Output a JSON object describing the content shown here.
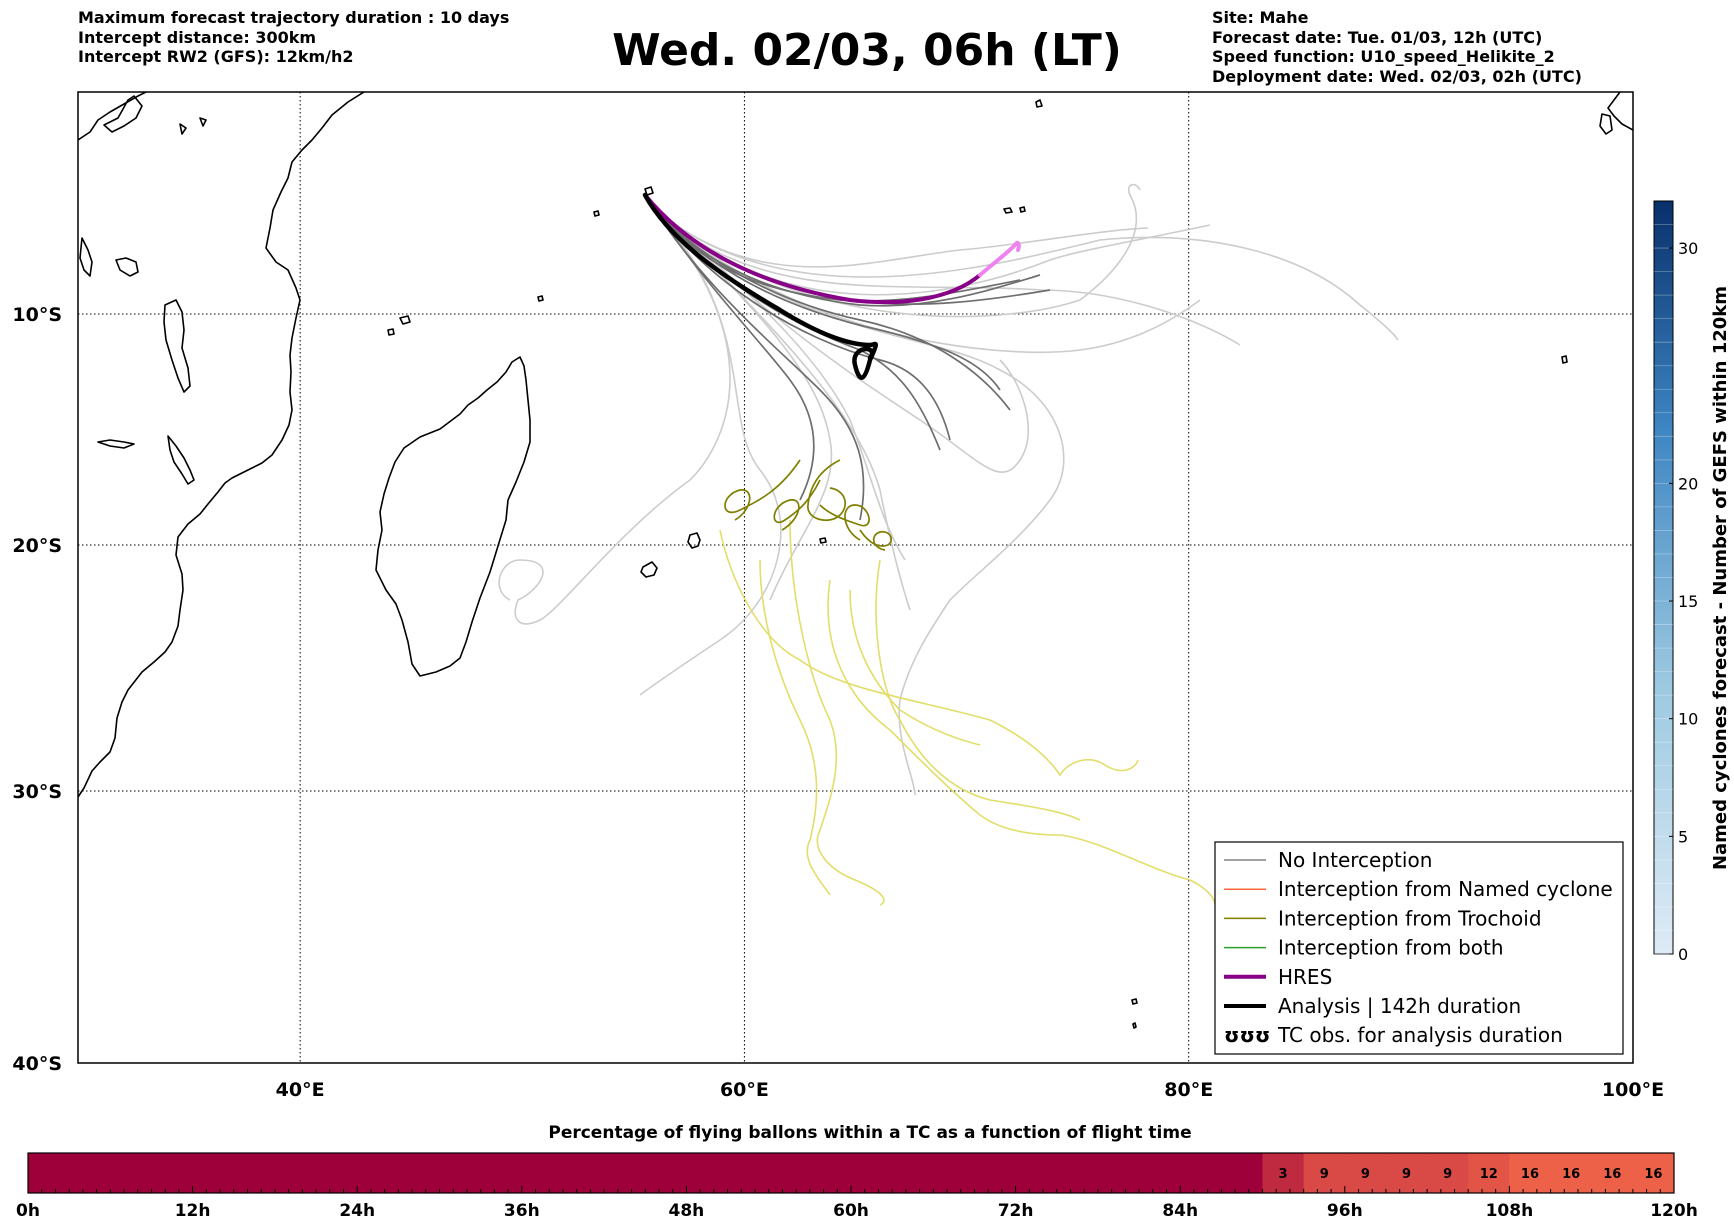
{
  "header": {
    "title": "Wed. 02/03, 06h (LT)",
    "left_lines": [
      "Maximum forecast trajectory duration : 10 days",
      "Intercept distance: 300km",
      "Intercept RW2 (GFS):  12km/h2"
    ],
    "right_lines": [
      "Site: Mahe",
      "Forecast date: Tue. 01/03, 12h (UTC)",
      "Speed function: U10_speed_Helikite_2",
      "Deployment date: Wed. 02/03, 02h (UTC)"
    ]
  },
  "map": {
    "lon_range": [
      30,
      100
    ],
    "lat_range": [
      -40,
      -0.4
    ],
    "lat_ticks": [
      {
        "value": -10,
        "label": "10°S"
      },
      {
        "value": -20,
        "label": "20°S"
      },
      {
        "value": -30,
        "label": "30°S"
      },
      {
        "value": -40,
        "label": "40°S"
      }
    ],
    "lon_ticks": [
      {
        "value": 40,
        "label": "40°E"
      },
      {
        "value": 60,
        "label": "60°E"
      },
      {
        "value": 80,
        "label": "80°E"
      },
      {
        "value": 100,
        "label": "100°E"
      }
    ],
    "grid": true,
    "launch_site": {
      "name": "Mahe",
      "lon": 55.5,
      "lat": -4.6
    },
    "colors": {
      "no_interception_dark": "#6e6e6e",
      "no_interception_light": "#cccccc",
      "named_cyclone": "#ff6a3c",
      "trochoid": "#7f7f00",
      "trochoid_light": "#e6e070",
      "both": "#2ca02c",
      "hres": "#880088",
      "hres_tail": "#ee82ee",
      "analysis": "#000000"
    },
    "legend": {
      "position": "lower-right",
      "items": [
        {
          "label": "No Interception",
          "style": "thin",
          "color": "#808080"
        },
        {
          "label": "Interception from Named cyclone",
          "style": "thin",
          "color": "#ff6a3c"
        },
        {
          "label": "Interception from Trochoid",
          "style": "thin",
          "color": "#7f7f00"
        },
        {
          "label": "Interception from both",
          "style": "thin",
          "color": "#2ca02c"
        },
        {
          "label": "HRES",
          "style": "thick",
          "color": "#880088"
        },
        {
          "label": "Analysis | 142h duration",
          "style": "thick",
          "color": "#000000"
        },
        {
          "label": "TC obs. for analysis duration",
          "style": "symbol",
          "symbol": "ʊʊʊ",
          "color": "#000000"
        }
      ]
    }
  },
  "colorbar": {
    "title": "Named cyclones forecast - Number of GEFS within 120km",
    "range": [
      0,
      32
    ],
    "ticks": [
      {
        "value": 0,
        "label": "0"
      },
      {
        "value": 5,
        "label": "5"
      },
      {
        "value": 10,
        "label": "10"
      },
      {
        "value": 15,
        "label": "15"
      },
      {
        "value": 20,
        "label": "20"
      },
      {
        "value": 30,
        "label": "30"
      }
    ],
    "color_low": "#deebf7",
    "color_high": "#08306b"
  },
  "chart_data": {
    "type": "heatmap",
    "title": "Percentage of flying ballons within a TC as a function of flight time",
    "x_unit": "h",
    "x_range": [
      0,
      120
    ],
    "x_ticks": [
      "0h",
      "12h",
      "24h",
      "36h",
      "48h",
      "60h",
      "72h",
      "84h",
      "96h",
      "108h",
      "120h"
    ],
    "cell_hours": 3,
    "values": [
      0,
      0,
      0,
      0,
      0,
      0,
      0,
      0,
      0,
      0,
      0,
      0,
      0,
      0,
      0,
      0,
      0,
      0,
      0,
      0,
      0,
      0,
      0,
      0,
      0,
      0,
      0,
      0,
      0,
      0,
      3,
      9,
      9,
      9,
      9,
      12,
      16,
      16,
      16,
      16
    ],
    "labeled_from_hour": 90,
    "color_low": "#9e003a",
    "color_high": "#ed6148"
  }
}
